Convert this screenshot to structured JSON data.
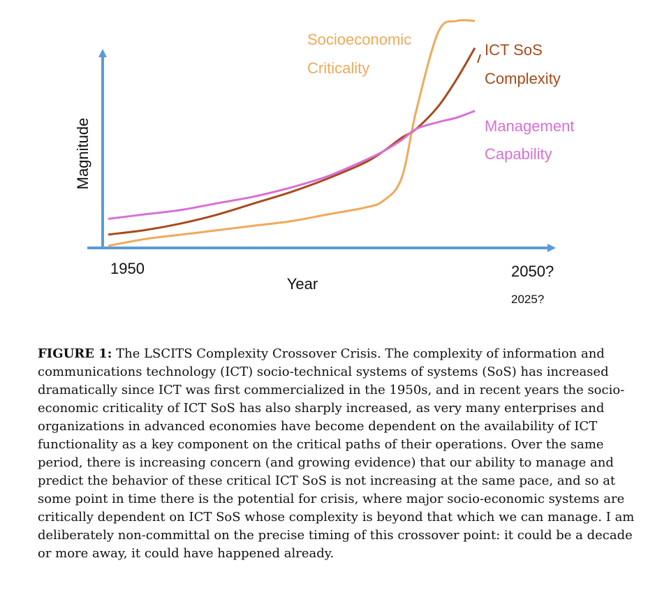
{
  "chart_data": {
    "type": "line",
    "xlabel": "Year",
    "ylabel": "Magnitude",
    "x_tick_labels": [
      "1950",
      "2050?"
    ],
    "x_alt_label": "2025?",
    "grid": false,
    "legend": "curve labels placed at upper right beside each line",
    "x": [
      0,
      0.1,
      0.2,
      0.3,
      0.4,
      0.5,
      0.6,
      0.7,
      0.75,
      0.8,
      0.84,
      0.9,
      0.95,
      1.0
    ],
    "series": [
      {
        "name": "Socioeconomic\nCriticality",
        "color": "#f0a95a",
        "values": [
          0.0,
          0.03,
          0.05,
          0.07,
          0.09,
          0.11,
          0.14,
          0.17,
          0.2,
          0.3,
          0.6,
          0.95,
          1.0,
          1.0
        ]
      },
      {
        "name": "ICT SoS\nComplexity",
        "color": "#a84a1c",
        "values": [
          0.05,
          0.07,
          0.1,
          0.14,
          0.19,
          0.24,
          0.3,
          0.37,
          0.42,
          0.48,
          0.52,
          0.62,
          0.74,
          0.88
        ]
      },
      {
        "name": "Management\nCapability",
        "color": "#d96fd6",
        "values": [
          0.12,
          0.14,
          0.16,
          0.19,
          0.22,
          0.26,
          0.31,
          0.38,
          0.42,
          0.47,
          0.52,
          0.55,
          0.57,
          0.6
        ]
      }
    ]
  },
  "caption": {
    "label": "FIGURE 1:",
    "text": " The LSCITS Complexity Crossover Crisis. The complexity of information and communications technology (ICT) socio-technical systems of systems (SoS) has increased dramatically since ICT was first commercialized in the 1950s, and in recent years the socio-economic criticality of ICT SoS has also sharply increased, as very many enterprises and organizations in advanced economies have become dependent on the availability of ICT functionality as a key component on the critical paths of their operations. Over the same period, there is increasing concern (and growing evidence) that our ability to manage and predict the behavior of these critical ICT SoS is not increasing at the same pace, and so at some point in time there is the potential for crisis, where major socio-economic systems are critically dependent on ICT SoS whose complexity is beyond that which we can manage.  I am deliberately non-committal on the precise timing of this crossover point: it could be a decade or more away, it could have happened already."
  }
}
